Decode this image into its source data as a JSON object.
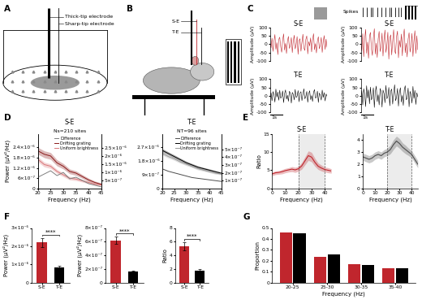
{
  "diagrams": [
    {
      "panel": "A",
      "labels": [
        "Thick-tip electrode",
        "Sharp-tip electrode"
      ]
    },
    {
      "panel": "B",
      "labels": [
        "S-E",
        "T-E"
      ]
    }
  ],
  "chart_data": [
    {
      "type": "trace",
      "panel": "C",
      "title": "S-E",
      "y_label": "Amplitude (μV)",
      "color": "#c0262d",
      "ylim": [
        -100,
        100
      ],
      "yticks": [
        -100,
        -50,
        0,
        50,
        100
      ],
      "tick_labels": "y",
      "values": [
        8,
        -22,
        35,
        -44,
        14,
        57,
        -31,
        9,
        -63,
        28,
        41,
        -16,
        -49,
        23,
        61,
        -36,
        4,
        -56,
        19,
        46,
        -26,
        -9,
        39,
        -51,
        16,
        53,
        -29,
        -4,
        45,
        -61,
        21,
        32,
        -43,
        10,
        59,
        -23,
        -38,
        27,
        49,
        -59,
        15,
        -11,
        37,
        -47,
        25,
        62,
        -34,
        3,
        -53,
        18,
        44,
        -28,
        -7,
        40,
        -50,
        12,
        51,
        -32,
        30,
        -19
      ]
    },
    {
      "type": "trace",
      "title": "T-E",
      "y_label": "Amplitude (μV)",
      "color": "#000000",
      "ylim": [
        -100,
        100
      ],
      "yticks": [
        -100,
        -50,
        0,
        50,
        100
      ],
      "tick_labels": "y",
      "scale_bar": "1s",
      "values": [
        -12,
        18,
        -30,
        25,
        6,
        -38,
        40,
        -8,
        22,
        -27,
        33,
        -15,
        -5,
        29,
        -41,
        12,
        35,
        -20,
        3,
        -33,
        27,
        14,
        -44,
        20,
        9,
        -25,
        38,
        -11,
        -2,
        31,
        -36,
        17,
        24,
        -29,
        7,
        42,
        -18,
        -6,
        26,
        -39,
        13,
        30,
        -23,
        1,
        -34,
        21,
        37,
        -14,
        -9,
        28,
        -40,
        16,
        4,
        -26,
        34,
        -10,
        19,
        -31,
        11,
        -3
      ]
    },
    {
      "type": "trace",
      "title": "S-E",
      "y_label": "Amplitude (μV)",
      "color": "#c0262d",
      "ylim": [
        -100,
        100
      ],
      "yticks": [
        -100,
        -50,
        0,
        50,
        100
      ],
      "tick_labels": "y",
      "spikes": {
        "label": "Spikes",
        "times": [
          3,
          9,
          14,
          17,
          24,
          30,
          35,
          41,
          44,
          50,
          54,
          58
        ]
      },
      "values": [
        15,
        -40,
        62,
        -75,
        28,
        88,
        -55,
        12,
        -85,
        47,
        70,
        -30,
        -68,
        38,
        92,
        -60,
        5,
        -80,
        33,
        76,
        -45,
        -15,
        66,
        -72,
        25,
        84,
        -50,
        -8,
        71,
        -90,
        36,
        55,
        -65,
        18,
        86,
        -38,
        -58,
        44,
        78,
        -82,
        22,
        -20,
        60,
        -70,
        40,
        90,
        -52,
        6,
        -77,
        30,
        68,
        -48,
        -12,
        64,
        -74,
        20,
        80,
        -56,
        50,
        -34
      ]
    },
    {
      "type": "trace",
      "title": "T-E",
      "y_label": "Amplitude (μV)",
      "color": "#000000",
      "ylim": [
        -100,
        100
      ],
      "yticks": [
        -100,
        -50,
        0,
        50,
        100
      ],
      "tick_labels": "y",
      "scale_bar": "1s",
      "values": [
        -20,
        30,
        -55,
        42,
        10,
        -65,
        60,
        -14,
        36,
        -48,
        52,
        -25,
        -8,
        48,
        -70,
        22,
        58,
        -35,
        6,
        -55,
        44,
        24,
        -68,
        34,
        14,
        -42,
        62,
        -18,
        -4,
        50,
        -60,
        28,
        40,
        -50,
        12,
        66,
        -30,
        -10,
        44,
        -62,
        20,
        48,
        -38,
        2,
        -58,
        36,
        60,
        -24,
        -16,
        46,
        -66,
        26,
        8,
        -44,
        56,
        -16,
        32,
        -52,
        18,
        -6
      ]
    },
    {
      "type": "line",
      "panel": "D",
      "title": "S-E",
      "subtitle": "Ns=210 sites",
      "x_label": "Frequency (Hz)",
      "y_label": "Power (μV²/Hz)",
      "legend": "upper right",
      "x": [
        20,
        22.5,
        25,
        27.5,
        30,
        32.5,
        35,
        37.5,
        40,
        42.5,
        45
      ],
      "xlim": [
        20,
        45
      ],
      "xticks": [
        20,
        25,
        30,
        35,
        40,
        45
      ],
      "ylim": [
        0,
        3.2e-06
      ],
      "yticks": [
        0,
        {
          "value": 6e-07,
          "label": "6×10⁻⁷"
        },
        {
          "value": 1.2e-06,
          "label": "1.2×10⁻⁶"
        },
        {
          "value": 1.8e-06,
          "label": "1.8×10⁻⁶"
        },
        {
          "value": 2.4e-06,
          "label": "2.4×10⁻⁶"
        }
      ],
      "y2lim": [
        0,
        3.4e-06
      ],
      "y2ticks": [
        {
          "value": 5e-07,
          "label": "5×10⁻⁷"
        },
        {
          "value": 1e-06,
          "label": "1×10⁻⁶"
        },
        {
          "value": 1.5e-06,
          "label": "1.5×10⁻⁶"
        },
        {
          "value": 2e-06,
          "label": "2×10⁻⁶"
        },
        {
          "value": 2.5e-06,
          "label": "2.5×10⁻⁶"
        }
      ],
      "series": [
        {
          "name": "Difference",
          "color": "#7f7f7f",
          "axis": "y2",
          "values": [
            7e-07,
            9e-07,
            1.1e-06,
            8e-07,
            1e-06,
            6e-07,
            7e-07,
            5e-07,
            3e-07,
            2e-07,
            1e-07
          ]
        },
        {
          "name": "Drifting grating",
          "color": "#8b1a1a",
          "values": [
            2.2e-06,
            2e-06,
            1.9e-06,
            1.5e-06,
            1.3e-06,
            1e-06,
            9e-07,
            7e-07,
            5e-07,
            3.5e-07,
            2.5e-07
          ],
          "error": [
            2e-07,
            2e-07,
            2e-07,
            1.8e-07,
            1.6e-07,
            1.4e-07,
            1.3e-07,
            1.1e-07,
            1e-07,
            8e-08,
            6e-08
          ]
        },
        {
          "name": "Uniform brightness",
          "color": "#d9777a",
          "values": [
            1.7e-06,
            1.4e-06,
            1.3e-06,
            1e-06,
            8e-07,
            6e-07,
            5.5e-07,
            4.5e-07,
            3.5e-07,
            2.5e-07,
            2e-07
          ],
          "error": [
            1.5e-07,
            1.4e-07,
            1.3e-07,
            1.2e-07,
            1.1e-07,
            1e-07,
            9e-08,
            8e-08,
            7e-08,
            6e-08,
            5e-08
          ]
        }
      ]
    },
    {
      "type": "line",
      "title": "T-E",
      "subtitle": "NT=96 sites",
      "x_label": "Frequency (Hz)",
      "legend": "upper right",
      "x": [
        20,
        22.5,
        25,
        27.5,
        30,
        32.5,
        35,
        37.5,
        40,
        42.5,
        45
      ],
      "xlim": [
        20,
        45
      ],
      "xticks": [
        20,
        25,
        30,
        35,
        40,
        45
      ],
      "ylim": [
        0,
        3.6e-06
      ],
      "yticks": [
        0,
        {
          "value": 9e-07,
          "label": "9×10⁻⁷"
        },
        {
          "value": 1.8e-06,
          "label": "1.8×10⁻⁶"
        },
        {
          "value": 2.7e-06,
          "label": "2.7×10⁻⁶"
        }
      ],
      "y2lim": [
        0,
        7e-07
      ],
      "y2ticks": [
        {
          "value": 1e-07,
          "label": "1×10⁻⁷"
        },
        {
          "value": 2e-07,
          "label": "2×10⁻⁷"
        },
        {
          "value": 3e-07,
          "label": "3×10⁻⁷"
        },
        {
          "value": 4e-07,
          "label": "4×10⁻⁷"
        },
        {
          "value": 5e-07,
          "label": "5×10⁻⁷"
        }
      ],
      "series": [
        {
          "name": "Difference",
          "color": "#4d4d4d",
          "axis": "y2",
          "values": [
            2.5e-07,
            2.2e-07,
            2e-07,
            1.8e-07,
            1.6e-07,
            1.4e-07,
            1.3e-07,
            1.2e-07,
            1.1e-07,
            1e-07,
            9e-08
          ]
        },
        {
          "name": "Drifting grating",
          "color": "#000000",
          "values": [
            2.5e-06,
            2.3e-06,
            2.1e-06,
            1.9e-06,
            1.7e-06,
            1.55e-06,
            1.4e-06,
            1.3e-06,
            1.2e-06,
            1.1e-06,
            1e-06
          ],
          "error": [
            1.2e-07,
            1.1e-07,
            1.1e-07,
            1e-07,
            1e-07,
            9e-08,
            9e-08,
            8e-08,
            8e-08,
            7e-08,
            7e-08
          ]
        },
        {
          "name": "Uniform brightness",
          "color": "#9a9a9a",
          "values": [
            2.3e-06,
            2.1e-06,
            1.95e-06,
            1.75e-06,
            1.6e-06,
            1.45e-06,
            1.3e-06,
            1.2e-06,
            1.1e-06,
            1e-06,
            9.5e-07
          ],
          "error": [
            1.1e-07,
            1e-07,
            1e-07,
            9e-08,
            9e-08,
            8e-08,
            8e-08,
            7e-08,
            7e-08,
            6e-08,
            6e-08
          ]
        }
      ]
    },
    {
      "type": "ratio",
      "panel": "E",
      "title": "S-E",
      "x_label": "Frequency (Hz)",
      "y_label": "Ratio",
      "x": [
        0,
        2.5,
        5,
        7.5,
        10,
        12.5,
        15,
        17.5,
        20,
        22.5,
        25,
        27.5,
        30,
        32.5,
        35,
        37.5,
        40,
        42.5,
        45
      ],
      "xlim": [
        0,
        45
      ],
      "xticks": [
        0,
        10,
        20,
        30,
        40
      ],
      "ylim": [
        0,
        15
      ],
      "yticks": [
        0,
        5,
        10,
        15
      ],
      "band": [
        20,
        40
      ],
      "color": "#c0262d",
      "values": [
        4.0,
        4.3,
        4.4,
        4.6,
        4.9,
        5.1,
        5.3,
        5.1,
        5.4,
        6.2,
        7.6,
        9.0,
        8.6,
        7.2,
        6.1,
        5.6,
        5.2,
        5.0,
        4.8
      ],
      "error": [
        0.5,
        0.5,
        0.5,
        0.6,
        0.6,
        0.6,
        0.7,
        0.7,
        0.7,
        0.9,
        1.1,
        1.3,
        1.3,
        1.1,
        0.9,
        0.8,
        0.7,
        0.7,
        0.6
      ]
    },
    {
      "type": "ratio",
      "title": "T-E",
      "x_label": "Frequency (Hz)",
      "x": [
        0,
        2.5,
        5,
        7.5,
        10,
        12.5,
        15,
        17.5,
        20,
        22.5,
        25,
        27.5,
        30,
        32.5,
        35,
        37.5,
        40,
        42.5,
        45
      ],
      "xlim": [
        0,
        45
      ],
      "xticks": [
        0,
        10,
        20,
        30,
        40
      ],
      "ylim": [
        0,
        4.5
      ],
      "yticks": [
        0,
        1,
        2,
        3,
        4
      ],
      "band": [
        20,
        40
      ],
      "color": "#4d4d4d",
      "values": [
        2.6,
        2.5,
        2.4,
        2.5,
        2.7,
        2.8,
        2.7,
        2.9,
        3.0,
        3.2,
        3.6,
        3.9,
        3.7,
        3.4,
        3.2,
        3.0,
        2.8,
        2.4,
        2.0
      ],
      "error": [
        0.3,
        0.3,
        0.3,
        0.3,
        0.3,
        0.3,
        0.3,
        0.3,
        0.3,
        0.35,
        0.4,
        0.4,
        0.4,
        0.35,
        0.35,
        0.3,
        0.3,
        0.3,
        0.3
      ]
    },
    {
      "type": "bar",
      "panel": "F",
      "y_label": "Power (μV²/Hz)",
      "categories": [
        "S-E",
        "T-E"
      ],
      "colors": [
        "#c0262d",
        "#000000"
      ],
      "values": [
        2.2e-06,
        8.5e-07
      ],
      "error": [
        2.5e-07,
        1e-07
      ],
      "ylim": [
        0,
        3e-06
      ],
      "yticks": [
        0,
        {
          "value": 1e-06,
          "label": "1×10⁻⁶"
        },
        {
          "value": 2e-06,
          "label": "2×10⁻⁶"
        },
        {
          "value": 3e-06,
          "label": "3×10⁻⁶"
        }
      ],
      "significance": "****"
    },
    {
      "type": "bar",
      "y_label": "Power (μV²/Hz)",
      "categories": [
        "S-E",
        "T-E"
      ],
      "colors": [
        "#c0262d",
        "#000000"
      ],
      "values": [
        6.2e-07,
        1.6e-07
      ],
      "error": [
        5e-08,
        1.5e-08
      ],
      "ylim": [
        0,
        8e-07
      ],
      "yticks": [
        0,
        {
          "value": 2e-07,
          "label": "2×10⁻⁷"
        },
        {
          "value": 4e-07,
          "label": "4×10⁻⁷"
        },
        {
          "value": 6e-07,
          "label": "6×10⁻⁷"
        },
        {
          "value": 8e-07,
          "label": "8×10⁻⁷"
        }
      ],
      "significance": "****"
    },
    {
      "type": "bar",
      "y_label": "Ratio",
      "categories": [
        "S-E",
        "T-E"
      ],
      "colors": [
        "#c0262d",
        "#000000"
      ],
      "values": [
        5.3,
        1.8
      ],
      "error": [
        0.6,
        0.15
      ],
      "ylim": [
        0,
        8
      ],
      "yticks": [
        0,
        2,
        4,
        6,
        8
      ],
      "significance": "****"
    },
    {
      "type": "grouped_bar",
      "panel": "G",
      "x_label": "Frequency (Hz)",
      "y_label": "Proportion",
      "categories": [
        "20-25",
        "25-30",
        "30-35",
        "35-40"
      ],
      "ylim": [
        0,
        0.5
      ],
      "yticks": [
        0,
        0.1,
        0.2,
        0.3,
        0.4,
        0.5
      ],
      "series": [
        {
          "color": "#c0262d",
          "values": [
            0.46,
            0.24,
            0.17,
            0.13
          ]
        },
        {
          "color": "#000000",
          "values": [
            0.45,
            0.26,
            0.16,
            0.13
          ]
        }
      ]
    }
  ]
}
